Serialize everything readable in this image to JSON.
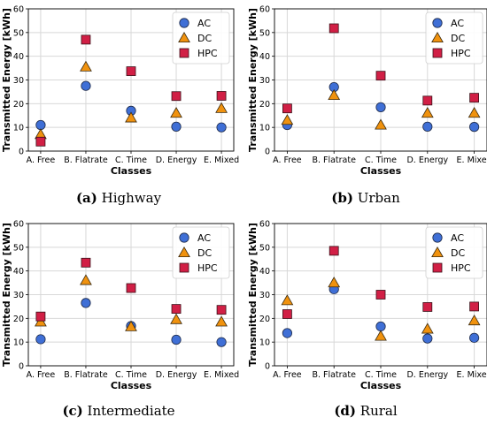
{
  "chart_data": [
    {
      "type": "scatter",
      "caption_letter": "(a)",
      "caption_text": "Highway",
      "xlabel": "Classes",
      "ylabel": "Transmitted Energy [kWh]",
      "categories": [
        "A. Free",
        "B. Flatrate",
        "C. Time",
        "D. Energy",
        "E. Mixed"
      ],
      "ylim": [
        0,
        60
      ],
      "yticks": [
        0,
        10,
        20,
        30,
        40,
        50,
        60
      ],
      "grid": true,
      "legend_position": "top-right",
      "series": [
        {
          "name": "AC",
          "marker": "circle",
          "color": "#3f6fd6",
          "values": [
            11,
            27.5,
            17,
            10.3,
            10
          ]
        },
        {
          "name": "DC",
          "marker": "triangle",
          "color": "#f0920e",
          "values": [
            7,
            35.5,
            14,
            16,
            18
          ]
        },
        {
          "name": "HPC",
          "marker": "square",
          "color": "#d11f45",
          "values": [
            4,
            47,
            33.7,
            23.2,
            23.3
          ]
        }
      ]
    },
    {
      "type": "scatter",
      "caption_letter": "(b)",
      "caption_text": "Urban",
      "xlabel": "Classes",
      "ylabel": "Transmitted Energy [kWh]",
      "categories": [
        "A. Free",
        "B. Flatrate",
        "C. Time",
        "D. Energy",
        "E. Mixed"
      ],
      "ylim": [
        0,
        60
      ],
      "yticks": [
        0,
        10,
        20,
        30,
        40,
        50,
        60
      ],
      "grid": true,
      "legend_position": "top-right",
      "series": [
        {
          "name": "AC",
          "marker": "circle",
          "color": "#3f6fd6",
          "values": [
            11,
            27,
            18.5,
            10.3,
            10.2
          ]
        },
        {
          "name": "DC",
          "marker": "triangle",
          "color": "#f0920e",
          "values": [
            13,
            23.5,
            11,
            16,
            16
          ]
        },
        {
          "name": "HPC",
          "marker": "square",
          "color": "#d11f45",
          "values": [
            18,
            51.8,
            31.8,
            21.3,
            22.5
          ]
        }
      ]
    },
    {
      "type": "scatter",
      "caption_letter": "(c)",
      "caption_text": "Intermediate",
      "xlabel": "Classes",
      "ylabel": "Transmitted Energy [kWh]",
      "categories": [
        "A. Free",
        "B. Flatrate",
        "C. Time",
        "D. Energy",
        "E. Mixed"
      ],
      "ylim": [
        0,
        60
      ],
      "yticks": [
        0,
        10,
        20,
        30,
        40,
        50,
        60
      ],
      "grid": true,
      "legend_position": "top-right",
      "series": [
        {
          "name": "AC",
          "marker": "circle",
          "color": "#3f6fd6",
          "values": [
            11.2,
            26.5,
            16.8,
            11,
            10
          ]
        },
        {
          "name": "DC",
          "marker": "triangle",
          "color": "#f0920e",
          "values": [
            18.5,
            36,
            16.5,
            19.5,
            18.5
          ]
        },
        {
          "name": "HPC",
          "marker": "square",
          "color": "#d11f45",
          "values": [
            20.8,
            43.5,
            32.8,
            24,
            23.6
          ]
        }
      ]
    },
    {
      "type": "scatter",
      "caption_letter": "(d)",
      "caption_text": "Rural",
      "xlabel": "Classes",
      "ylabel": "Transmitted Energy [kWh]",
      "categories": [
        "A. Free",
        "B. Flatrate",
        "C. Time",
        "D. Energy",
        "E. Mixed"
      ],
      "ylim": [
        0,
        60
      ],
      "yticks": [
        0,
        10,
        20,
        30,
        40,
        50,
        60
      ],
      "grid": true,
      "legend_position": "top-right",
      "series": [
        {
          "name": "AC",
          "marker": "circle",
          "color": "#3f6fd6",
          "values": [
            13.8,
            32.3,
            16.6,
            11.5,
            11.8
          ]
        },
        {
          "name": "DC",
          "marker": "triangle",
          "color": "#f0920e",
          "values": [
            27.5,
            35,
            12.5,
            15.5,
            19
          ]
        },
        {
          "name": "HPC",
          "marker": "square",
          "color": "#d11f45",
          "values": [
            21.8,
            48.5,
            30,
            24.8,
            25
          ]
        }
      ]
    }
  ]
}
